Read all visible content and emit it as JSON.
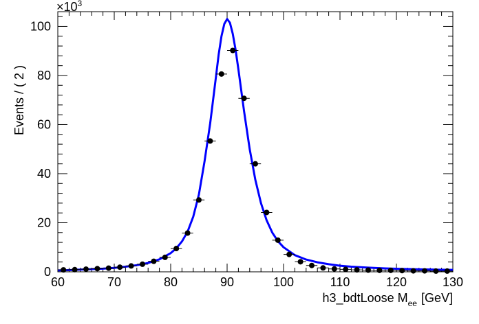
{
  "chart_data": {
    "type": "scatter",
    "xlabel": {
      "main": "h3_bdtLoose  M",
      "subscript": "ee",
      "unit": "[GeV]"
    },
    "ylabel": "Events / ( 2 )",
    "y_multiplier": {
      "base": "×10",
      "exponent": "3"
    },
    "xlim": [
      60,
      130
    ],
    "ylim": [
      0,
      106
    ],
    "x_ticks": [
      60,
      70,
      80,
      90,
      100,
      110,
      120,
      130
    ],
    "y_ticks": [
      0,
      20,
      40,
      60,
      80,
      100
    ],
    "x_bin_halfwidth": 1,
    "series": [
      {
        "kind": "data-points",
        "color": "#000000",
        "x": [
          61,
          63,
          65,
          67,
          69,
          71,
          73,
          75,
          77,
          79,
          81,
          83,
          85,
          87,
          89,
          91,
          93,
          95,
          97,
          99,
          101,
          103,
          105,
          107,
          109,
          111,
          113,
          115,
          117,
          119,
          121,
          123,
          125,
          127,
          129
        ],
        "y": [
          0.8,
          0.9,
          1.1,
          1.3,
          1.5,
          1.9,
          2.4,
          3.1,
          4.3,
          5.9,
          9.5,
          15.8,
          29.3,
          53.3,
          80.6,
          90.2,
          70.7,
          44.0,
          24.2,
          12.9,
          7.1,
          4.1,
          2.6,
          1.6,
          1.2,
          1.0,
          0.8,
          0.7,
          0.6,
          0.6,
          0.5,
          0.4,
          0.4,
          0.3,
          0.3
        ]
      },
      {
        "kind": "fit-curve",
        "color": "#0000ff",
        "x": [
          60,
          62,
          64,
          66,
          68,
          70,
          72,
          74,
          76,
          78,
          80,
          81,
          82,
          83,
          84,
          85,
          86,
          87,
          88,
          88.5,
          89,
          89.5,
          90,
          90.5,
          91,
          91.5,
          92,
          92.5,
          93,
          94,
          95,
          96,
          97,
          98,
          99,
          100,
          102,
          104,
          106,
          108,
          110,
          112,
          115,
          118,
          121,
          124,
          127,
          130
        ],
        "y": [
          0.6,
          0.7,
          0.9,
          1.1,
          1.3,
          1.6,
          2.1,
          2.7,
          3.6,
          5.1,
          7.6,
          9.6,
          12.4,
          16.4,
          22.5,
          31.5,
          45.0,
          60.5,
          79.0,
          88.5,
          96.0,
          101.0,
          103.0,
          101.5,
          97.0,
          90.5,
          82.5,
          74.0,
          65.5,
          50.0,
          37.5,
          28.0,
          21.0,
          16.0,
          12.5,
          10.0,
          6.8,
          5.0,
          3.9,
          3.1,
          2.5,
          2.1,
          1.7,
          1.4,
          1.2,
          1.0,
          0.9,
          0.8
        ]
      }
    ]
  }
}
